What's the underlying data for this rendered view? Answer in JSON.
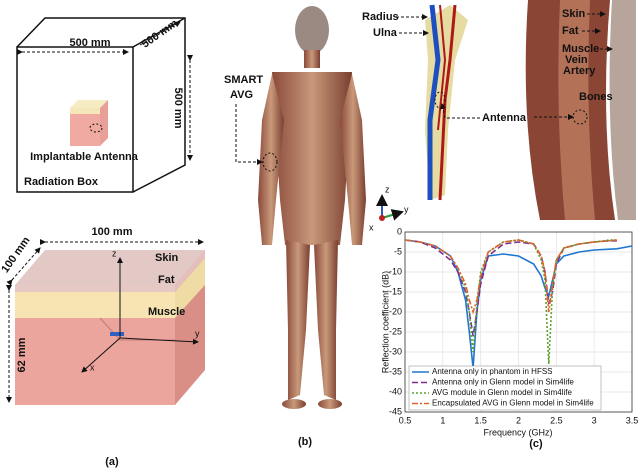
{
  "panel_a": {
    "box_width": "500 mm",
    "box_depth": "500 mm",
    "box_height": "500 mm",
    "antenna_label": "Implantable Antenna",
    "box_label": "Radiation Box",
    "block_width": "100 mm",
    "block_depth": "100 mm",
    "block_height": "62 mm",
    "layers": [
      "Skin",
      "Fat",
      "Muscle"
    ],
    "axes": [
      "z",
      "y",
      "x"
    ],
    "caption": "(a)"
  },
  "panel_b": {
    "device_label": [
      "SMART",
      "AVG"
    ],
    "caption": "(b)"
  },
  "panel_arm": {
    "bones": [
      "Radius",
      "Ulna"
    ],
    "tissues": [
      "Skin",
      "Fat",
      "Muscle",
      "Vein",
      "Artery",
      "Bones"
    ],
    "antenna_label": "Antenna",
    "axes": [
      "z",
      "y",
      "x"
    ]
  },
  "chart_data": {
    "type": "line",
    "xlabel": "Frequency (GHz)",
    "ylabel": "Reflection coefficient (dB)",
    "caption": "(c)",
    "x": [
      0.5,
      0.7,
      0.9,
      1.1,
      1.2,
      1.3,
      1.35,
      1.4,
      1.45,
      1.5,
      1.6,
      1.8,
      2.0,
      2.2,
      2.3,
      2.35,
      2.4,
      2.45,
      2.5,
      2.6,
      2.8,
      3.0,
      3.2,
      3.3,
      3.5
    ],
    "xlim": [
      0.5,
      3.5
    ],
    "xticks": [
      0.5,
      1,
      1.5,
      2,
      2.5,
      3,
      3.5
    ],
    "ylim": [
      -45,
      0
    ],
    "yticks": [
      0,
      -5,
      -10,
      -15,
      -20,
      -25,
      -30,
      -35,
      -40,
      -45
    ],
    "grid": true,
    "legend": "lower left",
    "series": [
      {
        "name": "Antenna only in phantom in HFSS",
        "color": "#1f77d0",
        "dash": "solid",
        "values": [
          -2,
          -2.5,
          -3.5,
          -6,
          -10,
          -17,
          -25,
          -34,
          -20,
          -12,
          -6,
          -5.5,
          -6,
          -8,
          -11,
          -14,
          -16,
          -12,
          -8,
          -6,
          -5,
          -4.5,
          -4.3,
          -4.2,
          -3.5
        ]
      },
      {
        "name": "Antenna only in Glenn model in Sim4life",
        "color": "#7e2f8e",
        "dash": "dashed",
        "values": [
          -2,
          -2.5,
          -4,
          -7,
          -10,
          -15,
          -20,
          -26,
          -20,
          -13,
          -6,
          -3,
          -2.5,
          -3,
          -6,
          -10,
          -18,
          -15,
          -8,
          -4,
          -3,
          -2.5,
          -2.2,
          -2.2,
          null
        ]
      },
      {
        "name": "AVG module in Glenn model in Sim4life",
        "color": "#5aa02c",
        "dash": "dotted",
        "values": [
          -2,
          -2.5,
          -3.5,
          -6,
          -9,
          -14,
          -20,
          -30,
          -18,
          -10,
          -5,
          -2.5,
          -2,
          -3,
          -7,
          -12,
          -33,
          -14,
          -7,
          -4,
          -3,
          -2.5,
          -2,
          -2,
          null
        ]
      },
      {
        "name": "Encapsulated AVG in Glenn model in Sim4life",
        "color": "#e0622a",
        "dash": "dashdot",
        "values": [
          -2,
          -2.5,
          -3.5,
          -6,
          -9,
          -13,
          -17,
          -20,
          -17,
          -11,
          -5,
          -2.5,
          -2,
          -3,
          -6,
          -10,
          -20,
          -13,
          -7,
          -4,
          -3,
          -2.5,
          -2.2,
          -2,
          null
        ]
      }
    ]
  }
}
